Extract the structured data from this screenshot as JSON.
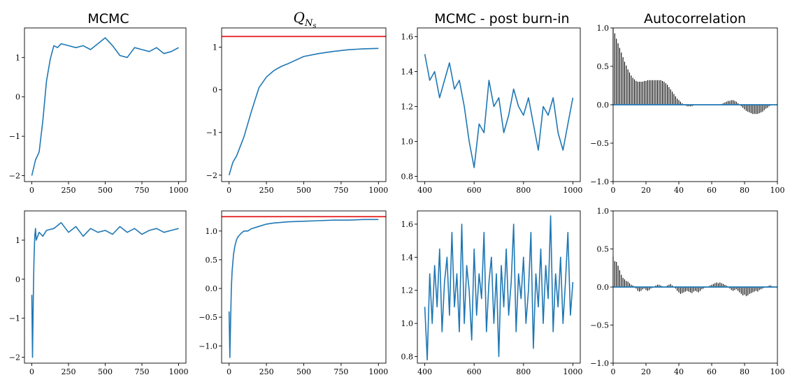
{
  "chart_data": [
    {
      "id": "p00",
      "type": "line",
      "title": "MCMC",
      "xlim": [
        -50,
        1050
      ],
      "ylim": [
        -2.15,
        1.75
      ],
      "xticks": [
        0,
        250,
        500,
        750,
        1000
      ],
      "xtick_labels": [
        "0",
        "250",
        "500",
        "750",
        "1000"
      ],
      "yticks": [
        -2,
        -1,
        0,
        1
      ],
      "ytick_labels": [
        "−2",
        "−1",
        "0",
        "1"
      ],
      "series": [
        {
          "color": "#1f77b4",
          "x": [
            0,
            25,
            50,
            75,
            100,
            125,
            150,
            175,
            200,
            250,
            300,
            350,
            400,
            450,
            500,
            550,
            600,
            650,
            700,
            750,
            800,
            850,
            900,
            950,
            1000
          ],
          "y": [
            -2.0,
            -1.6,
            -1.4,
            -0.6,
            0.4,
            0.95,
            1.3,
            1.25,
            1.35,
            1.3,
            1.25,
            1.3,
            1.2,
            1.35,
            1.5,
            1.3,
            1.05,
            1.0,
            1.25,
            1.2,
            1.15,
            1.25,
            1.1,
            1.15,
            1.25
          ]
        }
      ]
    },
    {
      "id": "p01",
      "type": "line",
      "title": "Q_{N_s}",
      "xlim": [
        -50,
        1050
      ],
      "ylim": [
        -2.15,
        1.45
      ],
      "xticks": [
        0,
        250,
        500,
        750,
        1000
      ],
      "xtick_labels": [
        "0",
        "250",
        "500",
        "750",
        "1000"
      ],
      "yticks": [
        -2,
        -1,
        0,
        1
      ],
      "ytick_labels": [
        "−2",
        "−1",
        "0",
        "1"
      ],
      "hline": {
        "y": 1.25,
        "color": "#e41a1c"
      },
      "series": [
        {
          "color": "#1f77b4",
          "x": [
            0,
            25,
            50,
            100,
            150,
            200,
            250,
            300,
            350,
            400,
            500,
            600,
            700,
            800,
            900,
            1000
          ],
          "y": [
            -2.0,
            -1.7,
            -1.55,
            -1.1,
            -0.5,
            0.05,
            0.3,
            0.45,
            0.55,
            0.62,
            0.78,
            0.85,
            0.9,
            0.94,
            0.96,
            0.97
          ]
        }
      ]
    },
    {
      "id": "p02",
      "type": "line",
      "title": "MCMC - post burn-in",
      "xlim": [
        370,
        1030
      ],
      "ylim": [
        0.77,
        1.65
      ],
      "xticks": [
        400,
        600,
        800,
        1000
      ],
      "xtick_labels": [
        "400",
        "600",
        "800",
        "1000"
      ],
      "yticks": [
        0.8,
        1.0,
        1.2,
        1.4,
        1.6
      ],
      "ytick_labels": [
        "0.8",
        "1.0",
        "1.2",
        "1.4",
        "1.6"
      ],
      "series": [
        {
          "color": "#1f77b4",
          "x": [
            400,
            420,
            440,
            460,
            480,
            500,
            520,
            540,
            560,
            580,
            600,
            620,
            640,
            660,
            680,
            700,
            720,
            740,
            760,
            780,
            800,
            820,
            840,
            860,
            880,
            900,
            920,
            940,
            960,
            980,
            1000
          ],
          "y": [
            1.5,
            1.35,
            1.4,
            1.25,
            1.35,
            1.45,
            1.3,
            1.35,
            1.2,
            1.0,
            0.85,
            1.1,
            1.05,
            1.35,
            1.2,
            1.25,
            1.05,
            1.15,
            1.3,
            1.2,
            1.15,
            1.25,
            1.1,
            0.95,
            1.2,
            1.15,
            1.25,
            1.05,
            0.95,
            1.1,
            1.25
          ]
        }
      ]
    },
    {
      "id": "p03",
      "type": "bar",
      "title": "Autocorrelation",
      "xlim": [
        0,
        100
      ],
      "ylim": [
        -1.0,
        1.0
      ],
      "xticks": [
        0,
        20,
        40,
        60,
        80,
        100
      ],
      "xtick_labels": [
        "0",
        "20",
        "40",
        "60",
        "80",
        "100"
      ],
      "yticks": [
        -1.0,
        -0.5,
        0.0,
        0.5,
        1.0
      ],
      "ytick_labels": [
        "−1.0",
        "−0.5",
        "0.0",
        "0.5",
        "1.0"
      ],
      "baseline_color": "#1f77b4",
      "bar_color": "#000000",
      "lags": [
        0,
        1,
        2,
        3,
        4,
        5,
        6,
        7,
        8,
        9,
        10,
        11,
        12,
        13,
        14,
        15,
        16,
        17,
        18,
        19,
        20,
        21,
        22,
        23,
        24,
        25,
        26,
        27,
        28,
        29,
        30,
        31,
        32,
        33,
        34,
        35,
        36,
        37,
        38,
        39,
        40,
        41,
        42,
        43,
        44,
        45,
        46,
        47,
        48,
        49,
        50,
        51,
        52,
        53,
        54,
        55,
        56,
        57,
        58,
        59,
        60,
        61,
        62,
        63,
        64,
        65,
        66,
        67,
        68,
        69,
        70,
        71,
        72,
        73,
        74,
        75,
        76,
        77,
        78,
        79,
        80,
        81,
        82,
        83,
        84,
        85,
        86,
        87,
        88,
        89,
        90,
        91,
        92,
        93,
        94,
        95,
        96,
        97,
        98,
        99,
        100
      ],
      "values": [
        1.0,
        0.93,
        0.86,
        0.8,
        0.74,
        0.68,
        0.62,
        0.56,
        0.51,
        0.46,
        0.42,
        0.38,
        0.35,
        0.33,
        0.31,
        0.3,
        0.3,
        0.3,
        0.3,
        0.31,
        0.31,
        0.32,
        0.32,
        0.32,
        0.32,
        0.32,
        0.32,
        0.32,
        0.32,
        0.32,
        0.31,
        0.3,
        0.28,
        0.26,
        0.23,
        0.2,
        0.17,
        0.14,
        0.11,
        0.08,
        0.06,
        0.04,
        0.02,
        0.0,
        -0.01,
        -0.02,
        -0.02,
        -0.02,
        -0.02,
        -0.01,
        0.0,
        0.0,
        0.0,
        0.0,
        0.0,
        0.0,
        0.0,
        0.0,
        0.0,
        0.0,
        0.0,
        0.0,
        0.0,
        0.0,
        0.0,
        0.0,
        0.01,
        0.02,
        0.03,
        0.04,
        0.05,
        0.05,
        0.06,
        0.06,
        0.05,
        0.04,
        0.02,
        0.0,
        -0.02,
        -0.04,
        -0.06,
        -0.08,
        -0.09,
        -0.1,
        -0.11,
        -0.12,
        -0.12,
        -0.12,
        -0.12,
        -0.11,
        -0.1,
        -0.09,
        -0.07,
        -0.05,
        -0.04,
        -0.02,
        -0.01,
        0.0,
        0.0,
        0.0,
        0.0
      ]
    },
    {
      "id": "p10",
      "type": "line",
      "title": "",
      "xlim": [
        -50,
        1050
      ],
      "ylim": [
        -2.15,
        1.75
      ],
      "xticks": [
        0,
        250,
        500,
        750,
        1000
      ],
      "xtick_labels": [
        "0",
        "250",
        "500",
        "750",
        "1000"
      ],
      "yticks": [
        -2,
        -1,
        0,
        1
      ],
      "ytick_labels": [
        "−2",
        "−1",
        "0",
        "1"
      ],
      "series": [
        {
          "color": "#1f77b4",
          "x": [
            0,
            5,
            10,
            15,
            20,
            25,
            30,
            50,
            75,
            100,
            150,
            200,
            250,
            300,
            350,
            400,
            450,
            500,
            550,
            600,
            650,
            700,
            750,
            800,
            850,
            900,
            950,
            1000
          ],
          "y": [
            -0.4,
            -2.0,
            -0.5,
            0.5,
            1.1,
            1.3,
            1.0,
            1.2,
            1.1,
            1.25,
            1.3,
            1.45,
            1.2,
            1.35,
            1.1,
            1.3,
            1.2,
            1.25,
            1.15,
            1.35,
            1.2,
            1.3,
            1.15,
            1.25,
            1.3,
            1.2,
            1.25,
            1.3
          ]
        }
      ]
    },
    {
      "id": "p11",
      "type": "line",
      "title": "",
      "xlim": [
        -50,
        1050
      ],
      "ylim": [
        -1.3,
        1.35
      ],
      "xticks": [
        0,
        250,
        500,
        750,
        1000
      ],
      "xtick_labels": [
        "0",
        "250",
        "500",
        "750",
        "1000"
      ],
      "yticks": [
        -1.0,
        -0.5,
        0.0,
        0.5,
        1.0
      ],
      "ytick_labels": [
        "−1.0",
        "−0.5",
        "0.0",
        "0.5",
        "1.0"
      ],
      "hline": {
        "y": 1.25,
        "color": "#e41a1c"
      },
      "series": [
        {
          "color": "#1f77b4",
          "x": [
            0,
            5,
            10,
            15,
            20,
            30,
            40,
            50,
            60,
            80,
            100,
            125,
            150,
            200,
            250,
            300,
            400,
            500,
            600,
            700,
            800,
            900,
            1000
          ],
          "y": [
            -0.4,
            -1.2,
            -0.6,
            0.0,
            0.3,
            0.6,
            0.75,
            0.85,
            0.9,
            0.96,
            1.0,
            1.0,
            1.04,
            1.08,
            1.12,
            1.14,
            1.16,
            1.17,
            1.18,
            1.19,
            1.19,
            1.2,
            1.2
          ]
        }
      ]
    },
    {
      "id": "p12",
      "type": "line",
      "title": "",
      "xlim": [
        370,
        1030
      ],
      "ylim": [
        0.76,
        1.68
      ],
      "xticks": [
        400,
        600,
        800,
        1000
      ],
      "xtick_labels": [
        "400",
        "600",
        "800",
        "1000"
      ],
      "yticks": [
        0.8,
        1.0,
        1.2,
        1.4,
        1.6
      ],
      "ytick_labels": [
        "0.8",
        "1.0",
        "1.2",
        "1.4",
        "1.6"
      ],
      "series": [
        {
          "color": "#1f77b4",
          "x": [
            400,
            410,
            420,
            430,
            440,
            450,
            460,
            470,
            480,
            490,
            500,
            510,
            520,
            530,
            540,
            550,
            560,
            570,
            580,
            590,
            600,
            610,
            620,
            630,
            640,
            650,
            660,
            670,
            680,
            690,
            700,
            710,
            720,
            730,
            740,
            750,
            760,
            770,
            780,
            790,
            800,
            810,
            820,
            830,
            840,
            850,
            860,
            870,
            880,
            890,
            900,
            910,
            920,
            930,
            940,
            950,
            960,
            970,
            980,
            990,
            1000
          ],
          "y": [
            1.1,
            0.78,
            1.3,
            1.0,
            1.35,
            1.1,
            1.45,
            0.95,
            1.25,
            1.4,
            1.05,
            1.55,
            1.1,
            1.3,
            0.95,
            1.6,
            1.0,
            1.35,
            1.2,
            0.9,
            1.45,
            1.05,
            1.3,
            1.15,
            1.55,
            0.95,
            1.25,
            1.4,
            1.0,
            1.3,
            0.8,
            1.35,
            1.1,
            1.45,
            1.05,
            1.25,
            1.6,
            0.95,
            1.3,
            1.15,
            1.4,
            1.0,
            1.2,
            1.55,
            0.85,
            1.3,
            1.1,
            1.45,
            1.0,
            1.35,
            1.15,
            1.65,
            0.95,
            1.3,
            1.1,
            1.4,
            1.0,
            1.25,
            1.55,
            1.05,
            1.25
          ]
        }
      ]
    },
    {
      "id": "p13",
      "type": "bar",
      "title": "",
      "xlim": [
        0,
        100
      ],
      "ylim": [
        -1.0,
        1.0
      ],
      "xticks": [
        0,
        20,
        40,
        60,
        80,
        100
      ],
      "xtick_labels": [
        "0",
        "20",
        "40",
        "60",
        "80",
        "100"
      ],
      "yticks": [
        -1.0,
        -0.5,
        0.0,
        0.5,
        1.0
      ],
      "ytick_labels": [
        "−1.0",
        "−0.5",
        "0.0",
        "0.5",
        "1.0"
      ],
      "baseline_color": "#1f77b4",
      "bar_color": "#000000",
      "lags": [
        0,
        1,
        2,
        3,
        4,
        5,
        6,
        7,
        8,
        9,
        10,
        11,
        12,
        13,
        14,
        15,
        16,
        17,
        18,
        19,
        20,
        21,
        22,
        23,
        24,
        25,
        26,
        27,
        28,
        29,
        30,
        31,
        32,
        33,
        34,
        35,
        36,
        37,
        38,
        39,
        40,
        41,
        42,
        43,
        44,
        45,
        46,
        47,
        48,
        49,
        50,
        51,
        52,
        53,
        54,
        55,
        56,
        57,
        58,
        59,
        60,
        61,
        62,
        63,
        64,
        65,
        66,
        67,
        68,
        69,
        70,
        71,
        72,
        73,
        74,
        75,
        76,
        77,
        78,
        79,
        80,
        81,
        82,
        83,
        84,
        85,
        86,
        87,
        88,
        89,
        90,
        91,
        92,
        93,
        94,
        95,
        96,
        97,
        98,
        99,
        100
      ],
      "values": [
        0.4,
        0.34,
        0.33,
        0.28,
        0.22,
        0.16,
        0.12,
        0.1,
        0.08,
        0.07,
        0.05,
        0.03,
        0.02,
        0.01,
        -0.02,
        -0.05,
        -0.06,
        -0.05,
        -0.03,
        -0.02,
        -0.04,
        -0.05,
        -0.04,
        -0.02,
        -0.01,
        0.0,
        0.02,
        0.03,
        0.03,
        0.02,
        0.01,
        0.0,
        0.0,
        0.02,
        0.03,
        0.04,
        0.02,
        0.0,
        -0.02,
        -0.05,
        -0.07,
        -0.09,
        -0.08,
        -0.07,
        -0.06,
        -0.05,
        -0.06,
        -0.07,
        -0.08,
        -0.06,
        -0.05,
        -0.06,
        -0.07,
        -0.05,
        -0.03,
        -0.02,
        -0.01,
        0.0,
        0.01,
        0.02,
        0.03,
        0.04,
        0.05,
        0.06,
        0.05,
        0.06,
        0.05,
        0.04,
        0.03,
        0.02,
        0.0,
        -0.02,
        -0.04,
        -0.05,
        -0.04,
        -0.03,
        -0.05,
        -0.07,
        -0.09,
        -0.11,
        -0.1,
        -0.12,
        -0.11,
        -0.09,
        -0.08,
        -0.07,
        -0.06,
        -0.05,
        -0.06,
        -0.04,
        -0.03,
        -0.02,
        -0.01,
        0.0,
        0.01,
        0.02,
        0.02,
        0.01,
        0.0,
        0.0,
        0.0
      ]
    }
  ]
}
